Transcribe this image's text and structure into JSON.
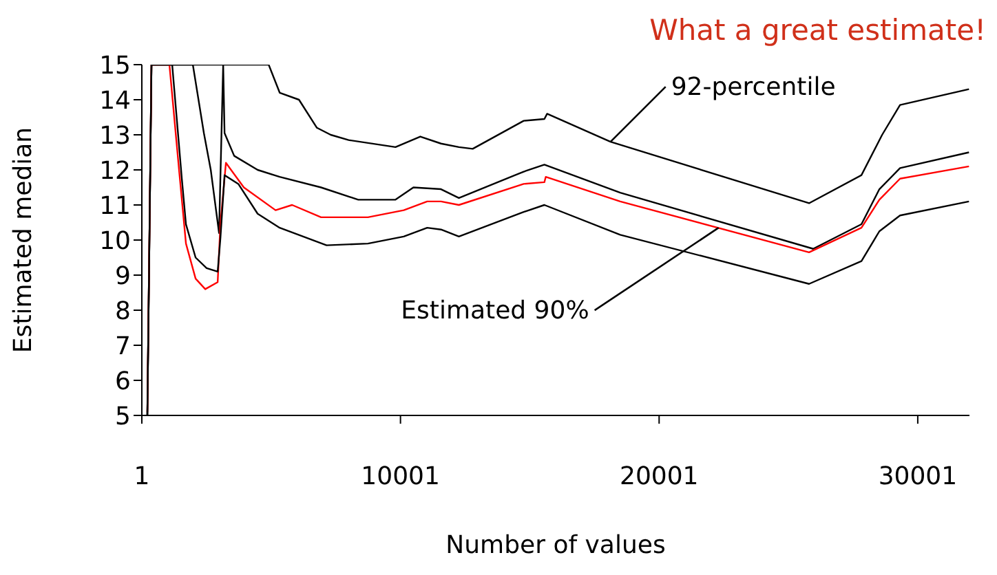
{
  "chart_data": {
    "type": "line",
    "title": "What a great estimate!",
    "xlabel": "Number of values",
    "ylabel": "Estimated median",
    "xlim": [
      1,
      32000
    ],
    "xticks": [
      1,
      10001,
      20001,
      30001
    ],
    "ylim": [
      5,
      15
    ],
    "yticks": [
      5,
      6,
      7,
      8,
      9,
      10,
      11,
      12,
      13,
      14,
      15
    ],
    "grid": false,
    "marker": "none",
    "line_style": "solid",
    "series": [
      {
        "color": "#000000",
        "x": [
          214,
          374,
          4905,
          5331,
          6077,
          6770,
          7303,
          7996,
          9808,
          10768,
          11568,
          12260,
          12793,
          14765,
          15565,
          15671,
          18123,
          25798,
          27824,
          28624,
          29316,
          31981
        ],
        "values": [
          5,
          15,
          15,
          14.2,
          14.0,
          13.2,
          13.0,
          12.85,
          12.65,
          12.95,
          12.75,
          12.65,
          12.6,
          13.4,
          13.45,
          13.6,
          12.8,
          11.05,
          11.85,
          13.0,
          13.85,
          14.3
        ]
      },
      {
        "color": "#000000",
        "x": [
          214,
          374,
          1973,
          2400,
          2666,
          2986,
          3146,
          3199,
          3572,
          4478,
          5331,
          6930,
          8369,
          9808,
          10501,
          11568,
          12260,
          14765,
          15565,
          18496,
          25958,
          27824,
          28517,
          29316,
          31981
        ],
        "values": [
          5,
          15,
          15,
          13.05,
          12.0,
          10.2,
          15,
          13.05,
          12.4,
          12.0,
          11.8,
          11.5,
          11.15,
          11.15,
          11.5,
          11.45,
          11.2,
          11.95,
          12.15,
          11.35,
          9.75,
          10.45,
          11.45,
          12.05,
          12.5
        ]
      },
      {
        "color": "#ff0000",
        "x": [
          214,
          374,
          1067,
          1440,
          1707,
          2080,
          2453,
          2933,
          3039,
          3252,
          3945,
          5171,
          5811,
          6930,
          8742,
          10128,
          11034,
          11568,
          12260,
          14765,
          15565,
          15618,
          18496,
          25798,
          27824,
          28517,
          29316,
          31981
        ],
        "values": [
          5.1,
          15,
          15,
          12.0,
          9.9,
          8.9,
          8.6,
          8.8,
          10.45,
          12.2,
          11.5,
          10.85,
          11.0,
          10.65,
          10.65,
          10.85,
          11.1,
          11.1,
          11.0,
          11.6,
          11.65,
          11.8,
          11.1,
          9.65,
          10.35,
          11.15,
          11.75,
          12.1
        ]
      },
      {
        "color": "#000000",
        "x": [
          214,
          374,
          1174,
          1547,
          1707,
          2080,
          2506,
          2933,
          3039,
          3199,
          3732,
          4478,
          5331,
          7143,
          8742,
          10128,
          11034,
          11568,
          12260,
          14765,
          15565,
          18496,
          25798,
          27824,
          28517,
          29316,
          31981
        ],
        "values": [
          5,
          15,
          15,
          11.75,
          10.45,
          9.5,
          9.2,
          9.1,
          10.05,
          11.85,
          11.6,
          10.75,
          10.35,
          9.85,
          9.9,
          10.1,
          10.35,
          10.3,
          10.1,
          10.8,
          11.0,
          10.15,
          8.75,
          9.4,
          10.25,
          10.7,
          11.1
        ]
      }
    ],
    "annotations": [
      {
        "text": "92-percentile",
        "x": 18123,
        "y": 12.8
      },
      {
        "text": "Estimated 90%",
        "x": 22300,
        "y": 10.35
      }
    ]
  }
}
